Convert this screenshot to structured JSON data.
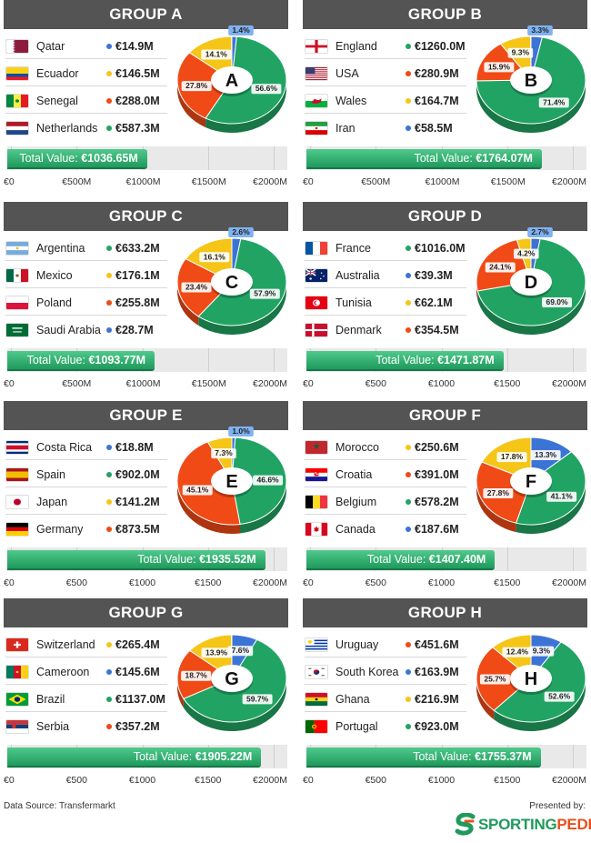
{
  "colors": {
    "green": "#21a463",
    "yellow": "#f5c518",
    "red": "#f04a16",
    "blue": "#3c74d6",
    "header": "#545454"
  },
  "chart_data": [
    {
      "type": "pie",
      "title": "GROUP A",
      "letter": "A",
      "teams": [
        {
          "name": "Qatar",
          "value": "€14.9M",
          "color": "blue",
          "flag": "qatar"
        },
        {
          "name": "Ecuador",
          "value": "€146.5M",
          "color": "yellow",
          "flag": "ecuador"
        },
        {
          "name": "Senegal",
          "value": "€288.0M",
          "color": "red",
          "flag": "senegal"
        },
        {
          "name": "Netherlands",
          "value": "€587.3M",
          "color": "green",
          "flag": "netherlands"
        }
      ],
      "slices": [
        {
          "color": "blue",
          "pct": 1.4,
          "label": "1.4%"
        },
        {
          "color": "green",
          "pct": 56.6,
          "label": "56.6%"
        },
        {
          "color": "red",
          "pct": 27.8,
          "label": "27.8%"
        },
        {
          "color": "yellow",
          "pct": 14.1,
          "label": "14.1%"
        }
      ],
      "total_label": "Total Value:",
      "total_value": "€1036.65M",
      "total_num": 1036.65,
      "axis_max": 2000,
      "ticks": [
        "€0",
        "€500M",
        "€1000M",
        "€1500M",
        "€2000M"
      ]
    },
    {
      "type": "pie",
      "title": "GROUP B",
      "letter": "B",
      "teams": [
        {
          "name": "England",
          "value": "€1260.0M",
          "color": "green",
          "flag": "england"
        },
        {
          "name": "USA",
          "value": "€280.9M",
          "color": "red",
          "flag": "usa"
        },
        {
          "name": "Wales",
          "value": "€164.7M",
          "color": "yellow",
          "flag": "wales"
        },
        {
          "name": "Iran",
          "value": "€58.5M",
          "color": "blue",
          "flag": "iran"
        }
      ],
      "slices": [
        {
          "color": "blue",
          "pct": 3.3,
          "label": "3.3%"
        },
        {
          "color": "green",
          "pct": 71.4,
          "label": "71.4%"
        },
        {
          "color": "red",
          "pct": 15.9,
          "label": "15.9%"
        },
        {
          "color": "yellow",
          "pct": 9.3,
          "label": "9.3%"
        }
      ],
      "total_label": "Total Value:",
      "total_value": "€1764.07M",
      "total_num": 1764.07,
      "axis_max": 2000,
      "ticks": [
        "€0",
        "€500M",
        "€1000M",
        "€1500M",
        "€2000M"
      ]
    },
    {
      "type": "pie",
      "title": "GROUP C",
      "letter": "C",
      "teams": [
        {
          "name": "Argentina",
          "value": "€633.2M",
          "color": "green",
          "flag": "argentina"
        },
        {
          "name": "Mexico",
          "value": "€176.1M",
          "color": "yellow",
          "flag": "mexico"
        },
        {
          "name": "Poland",
          "value": "€255.8M",
          "color": "red",
          "flag": "poland"
        },
        {
          "name": "Saudi Arabia",
          "value": "€28.7M",
          "color": "blue",
          "flag": "saudi"
        }
      ],
      "slices": [
        {
          "color": "blue",
          "pct": 2.6,
          "label": "2.6%"
        },
        {
          "color": "green",
          "pct": 57.9,
          "label": "57.9%"
        },
        {
          "color": "red",
          "pct": 23.4,
          "label": "23.4%"
        },
        {
          "color": "yellow",
          "pct": 16.1,
          "label": "16.1%"
        }
      ],
      "total_label": "Total Value:",
      "total_value": "€1093.77M",
      "total_num": 1093.77,
      "axis_max": 2000,
      "ticks": [
        "€0",
        "€500M",
        "€1000M",
        "€1500M",
        "€2000M"
      ]
    },
    {
      "type": "pie",
      "title": "GROUP D",
      "letter": "D",
      "teams": [
        {
          "name": "France",
          "value": "€1016.0M",
          "color": "green",
          "flag": "france"
        },
        {
          "name": "Australia",
          "value": "€39.3M",
          "color": "blue",
          "flag": "australia"
        },
        {
          "name": "Tunisia",
          "value": "€62.1M",
          "color": "yellow",
          "flag": "tunisia"
        },
        {
          "name": "Denmark",
          "value": "€354.5M",
          "color": "red",
          "flag": "denmark"
        }
      ],
      "slices": [
        {
          "color": "blue",
          "pct": 2.7,
          "label": "2.7%"
        },
        {
          "color": "green",
          "pct": 69.0,
          "label": "69.0%"
        },
        {
          "color": "red",
          "pct": 24.1,
          "label": "24.1%"
        },
        {
          "color": "yellow",
          "pct": 4.2,
          "label": "4.2%"
        }
      ],
      "total_label": "Total Value:",
      "total_value": "€1471.87M",
      "total_num": 1471.87,
      "axis_max": 2000,
      "ticks": [
        "€0",
        "€500",
        "€1000",
        "€1500",
        "€2000M"
      ]
    },
    {
      "type": "pie",
      "title": "GROUP E",
      "letter": "E",
      "teams": [
        {
          "name": "Costa Rica",
          "value": "€18.8M",
          "color": "blue",
          "flag": "costarica"
        },
        {
          "name": "Spain",
          "value": "€902.0M",
          "color": "green",
          "flag": "spain"
        },
        {
          "name": "Japan",
          "value": "€141.2M",
          "color": "yellow",
          "flag": "japan"
        },
        {
          "name": "Germany",
          "value": "€873.5M",
          "color": "red",
          "flag": "germany"
        }
      ],
      "slices": [
        {
          "color": "blue",
          "pct": 1.0,
          "label": "1.0%"
        },
        {
          "color": "green",
          "pct": 46.6,
          "label": "46.6%"
        },
        {
          "color": "red",
          "pct": 45.1,
          "label": "45.1%"
        },
        {
          "color": "yellow",
          "pct": 7.3,
          "label": "7.3%"
        }
      ],
      "total_label": "Total Value:",
      "total_value": "€1935.52M",
      "total_num": 1935.52,
      "axis_max": 2000,
      "ticks": [
        "€0",
        "€500",
        "€1000",
        "€1500",
        "€2000M"
      ]
    },
    {
      "type": "pie",
      "title": "GROUP F",
      "letter": "F",
      "teams": [
        {
          "name": "Morocco",
          "value": "€250.6M",
          "color": "yellow",
          "flag": "morocco"
        },
        {
          "name": "Croatia",
          "value": "€391.0M",
          "color": "red",
          "flag": "croatia"
        },
        {
          "name": "Belgium",
          "value": "€578.2M",
          "color": "green",
          "flag": "belgium"
        },
        {
          "name": "Canada",
          "value": "€187.6M",
          "color": "blue",
          "flag": "canada"
        }
      ],
      "slices": [
        {
          "color": "blue",
          "pct": 13.3,
          "label": "13.3%"
        },
        {
          "color": "green",
          "pct": 41.1,
          "label": "41.1%"
        },
        {
          "color": "red",
          "pct": 27.8,
          "label": "27.8%"
        },
        {
          "color": "yellow",
          "pct": 17.8,
          "label": "17.8%"
        }
      ],
      "total_label": "Total Value:",
      "total_value": "€1407.40M",
      "total_num": 1407.4,
      "axis_max": 2000,
      "ticks": [
        "€0",
        "€500",
        "€1000",
        "€1500",
        "€2000M"
      ]
    },
    {
      "type": "pie",
      "title": "GROUP G",
      "letter": "G",
      "teams": [
        {
          "name": "Switzerland",
          "value": "€265.4M",
          "color": "yellow",
          "flag": "switzerland"
        },
        {
          "name": "Cameroon",
          "value": "€145.6M",
          "color": "blue",
          "flag": "cameroon"
        },
        {
          "name": "Brazil",
          "value": "€1137.0M",
          "color": "green",
          "flag": "brazil"
        },
        {
          "name": "Serbia",
          "value": "€357.2M",
          "color": "red",
          "flag": "serbia"
        }
      ],
      "slices": [
        {
          "color": "blue",
          "pct": 7.6,
          "label": "7.6%"
        },
        {
          "color": "green",
          "pct": 59.7,
          "label": "59.7%"
        },
        {
          "color": "red",
          "pct": 18.7,
          "label": "18.7%"
        },
        {
          "color": "yellow",
          "pct": 13.9,
          "label": "13.9%"
        }
      ],
      "total_label": "Total Value:",
      "total_value": "€1905.22M",
      "total_num": 1905.22,
      "axis_max": 2000,
      "ticks": [
        "€0",
        "€500",
        "€1000",
        "€1500",
        "€2000M"
      ]
    },
    {
      "type": "pie",
      "title": "GROUP H",
      "letter": "H",
      "teams": [
        {
          "name": "Uruguay",
          "value": "€451.6M",
          "color": "red",
          "flag": "uruguay"
        },
        {
          "name": "South Korea",
          "value": "€163.9M",
          "color": "blue",
          "flag": "southkorea"
        },
        {
          "name": "Ghana",
          "value": "€216.9M",
          "color": "yellow",
          "flag": "ghana"
        },
        {
          "name": "Portugal",
          "value": "€923.0M",
          "color": "green",
          "flag": "portugal"
        }
      ],
      "slices": [
        {
          "color": "blue",
          "pct": 9.3,
          "label": "9.3%"
        },
        {
          "color": "green",
          "pct": 52.6,
          "label": "52.6%"
        },
        {
          "color": "red",
          "pct": 25.7,
          "label": "25.7%"
        },
        {
          "color": "yellow",
          "pct": 12.4,
          "label": "12.4%"
        }
      ],
      "total_label": "Total Value:",
      "total_value": "€1755.37M",
      "total_num": 1755.37,
      "axis_max": 2000,
      "ticks": [
        "€0",
        "€500",
        "€1000",
        "€1500",
        "€2000M"
      ]
    }
  ],
  "footer": {
    "source": "Data Source: Transfermarkt",
    "presented": "Presented by:",
    "brand_a": "SPORTING",
    "brand_b": "PEDIA",
    "brand_icon": "sportingpedia-logo-icon"
  }
}
